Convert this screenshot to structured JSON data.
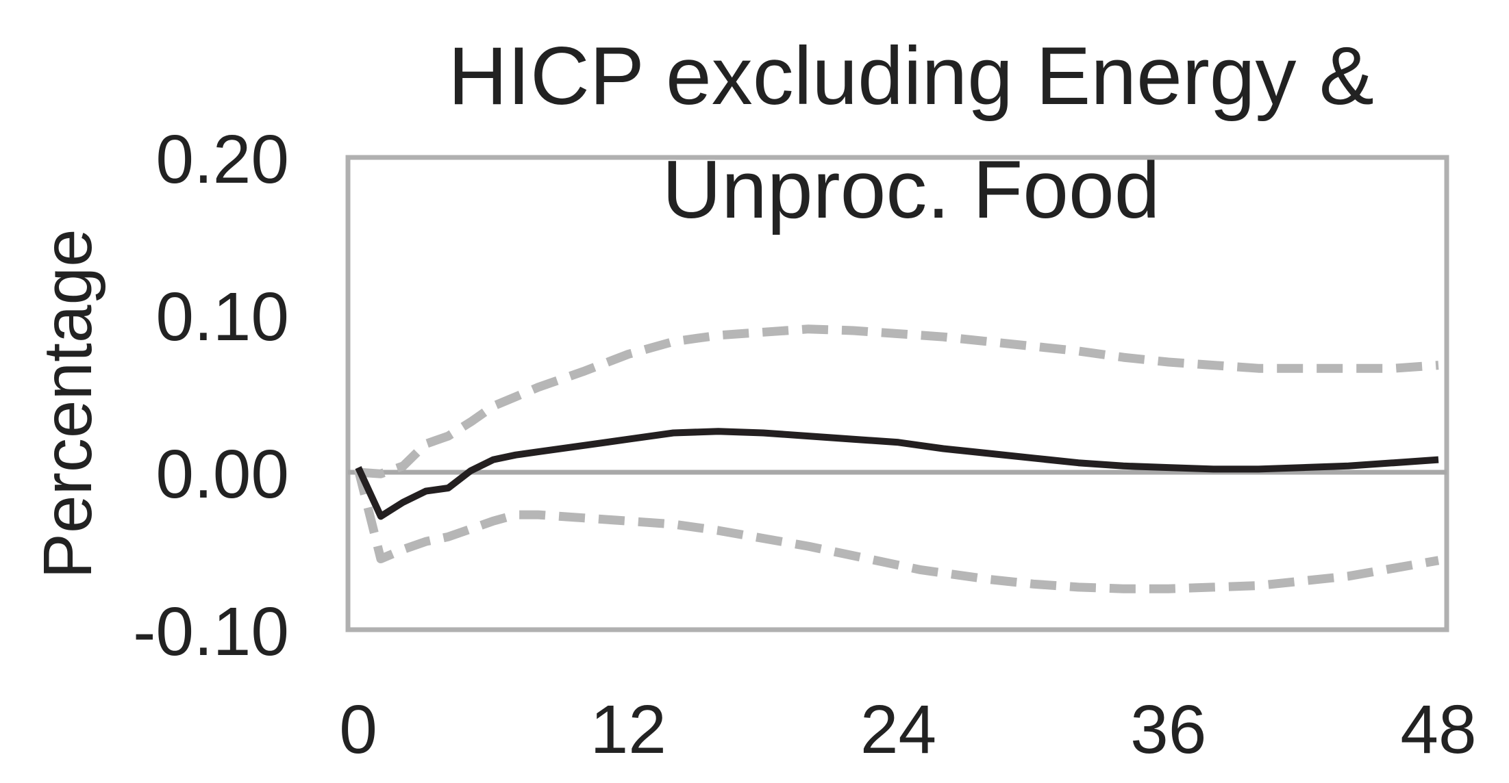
{
  "chart_data": {
    "type": "line",
    "title_lines": [
      "HICP excluding Energy &",
      "Unproc. Food"
    ],
    "xlabel": "",
    "ylabel": "Percentage",
    "xlim": [
      0,
      48
    ],
    "ylim": [
      -0.1,
      0.2
    ],
    "xticks": [
      0,
      12,
      24,
      36,
      48
    ],
    "xtick_labels": [
      "0",
      "12",
      "24",
      "36",
      "48"
    ],
    "yticks": [
      0.2,
      0.1,
      0.0,
      -0.1
    ],
    "ytick_labels": [
      "0.20",
      "0.10",
      "0.00",
      "-0.10"
    ],
    "grid": false,
    "zero_line": true,
    "legend": "none",
    "x": [
      0,
      1,
      2,
      3,
      4,
      5,
      6,
      7,
      8,
      10,
      12,
      14,
      16,
      18,
      20,
      22,
      24,
      25,
      26,
      28,
      30,
      32,
      34,
      36,
      38,
      40,
      42,
      44,
      46,
      48
    ],
    "series": [
      {
        "role": "median",
        "color": "#231f20",
        "style": "solid",
        "values": [
          0.003,
          -0.028,
          -0.019,
          -0.012,
          -0.01,
          0.001,
          0.008,
          0.011,
          0.013,
          0.017,
          0.021,
          0.025,
          0.026,
          0.025,
          0.023,
          0.021,
          0.019,
          0.017,
          0.015,
          0.012,
          0.009,
          0.006,
          0.004,
          0.003,
          0.002,
          0.002,
          0.003,
          0.004,
          0.006,
          0.008
        ]
      },
      {
        "role": "upper-band",
        "color": "#b6b6b6",
        "style": "dashed",
        "values": [
          0.0,
          -0.001,
          0.004,
          0.018,
          0.023,
          0.032,
          0.042,
          0.048,
          0.054,
          0.064,
          0.075,
          0.083,
          0.087,
          0.089,
          0.091,
          0.09,
          0.088,
          0.087,
          0.086,
          0.083,
          0.08,
          0.077,
          0.073,
          0.07,
          0.068,
          0.066,
          0.066,
          0.066,
          0.066,
          0.068
        ]
      },
      {
        "role": "lower-band",
        "color": "#b6b6b6",
        "style": "dashed",
        "values": [
          0.002,
          -0.055,
          -0.049,
          -0.044,
          -0.041,
          -0.036,
          -0.031,
          -0.027,
          -0.027,
          -0.029,
          -0.031,
          -0.033,
          -0.037,
          -0.042,
          -0.047,
          -0.053,
          -0.059,
          -0.062,
          -0.064,
          -0.068,
          -0.071,
          -0.073,
          -0.074,
          -0.074,
          -0.073,
          -0.072,
          -0.069,
          -0.066,
          -0.061,
          -0.056
        ]
      }
    ]
  },
  "colors": {
    "frame": "#b0b0b0",
    "zero_line": "#a8a8a8",
    "text": "#222222"
  }
}
